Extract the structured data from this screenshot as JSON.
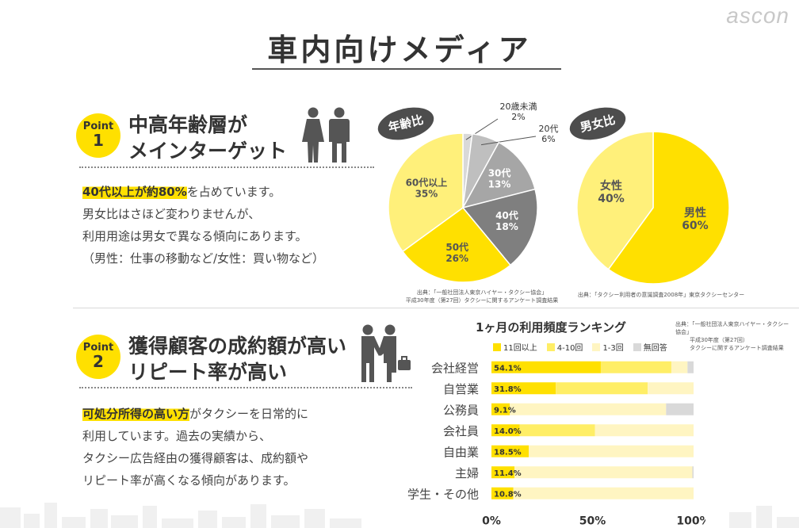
{
  "brand": "ascon",
  "page_title": "車内向けメディア",
  "point1": {
    "badge_label": "Point",
    "badge_number": "1",
    "heading_line1": "中高年齢層が",
    "heading_line2": "メインターゲット",
    "highlight": "40代以上が約80%",
    "line1_rest": "を占めています。",
    "line2": "男女比はさほど変わりませんが、",
    "line3": "利用用途は男女で異なる傾向にあります。",
    "line4": "（男性：仕事の移動など/女性：買い物など）"
  },
  "point2": {
    "badge_label": "Point",
    "badge_number": "2",
    "heading_line1": "獲得顧客の成約額が高い",
    "heading_line2": "リピート率が高い",
    "highlight": "可処分所得の高い方",
    "line1_rest": "がタクシーを日常的に",
    "line2": "利用しています。過去の実績から、",
    "line3": "タクシー広告経由の獲得顧客は、成約額や",
    "line4": "リピート率が高くなる傾向があります。"
  },
  "age_chart": {
    "bubble": "年齢比",
    "source_line1": "出典：「一般社団法人東京ハイヤー・タクシー協会」",
    "source_line2": "平成30年度（第27回）タクシーに関するアンケート調査結果"
  },
  "gender_chart": {
    "bubble": "男女比",
    "source_line1": "出典：「タクシー利用者の意識調査2008年」東京タクシーセンター"
  },
  "ranking": {
    "title": "1ヶ月の利用頻度ランキング",
    "source_line1": "出典：「一般社団法人東京ハイヤー・タクシー協会」",
    "source_line2": "平成30年度（第27回）",
    "source_line3": "タクシーに関するアンケート調査結果"
  },
  "colors": {
    "yellow": "#FFE000",
    "yellow_mid": "#FFEE66",
    "yellow_pale": "#FFF5C2",
    "gray_light": "#d9d9d9",
    "gray_mid": "#a6a6a6",
    "gray_dark": "#7f7f7f"
  },
  "chart_data": [
    {
      "type": "pie",
      "title": "年齢比",
      "slices": [
        {
          "label": "20歳未満",
          "value": 2,
          "text": "2%",
          "color": "#d9d9d9"
        },
        {
          "label": "20代",
          "value": 6,
          "text": "6%",
          "color": "#bfbfbf"
        },
        {
          "label": "30代",
          "value": 13,
          "text": "13%",
          "color": "#a6a6a6"
        },
        {
          "label": "40代",
          "value": 18,
          "text": "18%",
          "color": "#7f7f7f"
        },
        {
          "label": "50代",
          "value": 26,
          "text": "26%",
          "color": "#FFE000"
        },
        {
          "label": "60代以上",
          "value": 35,
          "text": "35%",
          "color": "#FFF07A"
        }
      ]
    },
    {
      "type": "pie",
      "title": "男女比",
      "slices": [
        {
          "label": "男性",
          "value": 60,
          "text": "60%",
          "color": "#FFE000"
        },
        {
          "label": "女性",
          "value": 40,
          "text": "40%",
          "color": "#FFF07A"
        }
      ]
    },
    {
      "type": "bar",
      "orientation": "horizontal",
      "stacked": true,
      "title": "1ヶ月の利用頻度ランキング",
      "categories": [
        "会社経営",
        "自営業",
        "公務員",
        "会社員",
        "自由業",
        "主婦",
        "学生・その他"
      ],
      "series": [
        {
          "name": "11回以上",
          "color": "#FFE000",
          "values": [
            54.1,
            31.8,
            9.1,
            14.0,
            18.5,
            11.4,
            10.8
          ],
          "labels": [
            "54.1%",
            "31.8%",
            "9.1%",
            "14.0%",
            "18.5%",
            "11.4%",
            "10.8%"
          ]
        },
        {
          "name": "4-10回",
          "color": "#FFEE66",
          "values": [
            34.9,
            45.5,
            0,
            37.2,
            0,
            0,
            0
          ]
        },
        {
          "name": "1-3回",
          "color": "#FFF5C2",
          "values": [
            8.0,
            22.7,
            77.3,
            48.8,
            81.5,
            88.0,
            89.2
          ]
        },
        {
          "name": "無回答",
          "color": "#d9d9d9",
          "values": [
            3.0,
            0,
            13.6,
            0,
            0,
            0.6,
            0
          ]
        }
      ],
      "xlim": [
        0,
        100
      ],
      "xticks": [
        "0%",
        "50%",
        "100%"
      ]
    }
  ]
}
